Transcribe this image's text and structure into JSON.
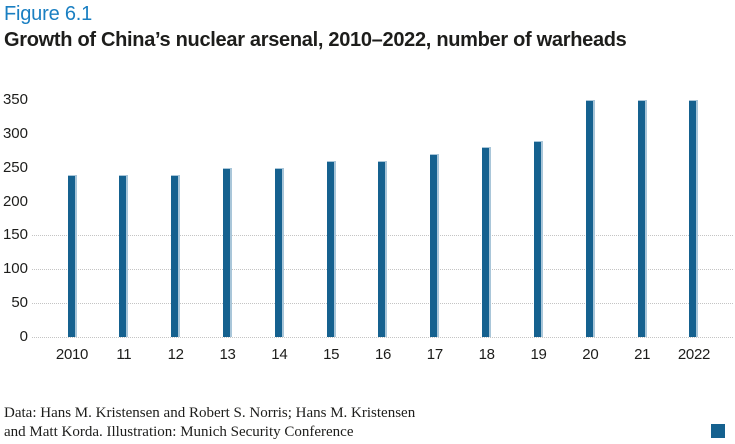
{
  "header": {
    "figure_label": "Figure 6.1",
    "title": "Growth of China’s nuclear arsenal, 2010–2022, number of warheads"
  },
  "chart_data": {
    "type": "bar",
    "title": "Growth of China’s nuclear arsenal, 2010–2022, number of warheads",
    "categories": [
      "2010",
      "11",
      "12",
      "13",
      "14",
      "15",
      "16",
      "17",
      "18",
      "19",
      "20",
      "21",
      "2022"
    ],
    "values": [
      240,
      240,
      240,
      250,
      250,
      260,
      260,
      270,
      280,
      290,
      350,
      350,
      350
    ],
    "xlabel": "",
    "ylabel": "",
    "ylim": [
      0,
      350
    ],
    "yticks": [
      0,
      50,
      100,
      150,
      200,
      250,
      300,
      350
    ],
    "gridline_values": [
      0,
      50,
      100,
      150
    ],
    "grid_style": "dotted horizontal, only below 200",
    "legend": null,
    "bar_color": "#15618f"
  },
  "footer": {
    "line1": "Data: Hans M. Kristensen and Robert S. Norris; Hans M. Kristensen",
    "line2": "and Matt Korda. Illustration: Munich Security Conference"
  },
  "colors": {
    "accent_blue": "#1a7fc2",
    "title_text": "#1d1d1b",
    "bar": "#15618f",
    "bar_highlight": "#a9c6d9",
    "gridline": "#c4c4c4",
    "background": "#ffffff",
    "brand_square": "#15618f"
  }
}
